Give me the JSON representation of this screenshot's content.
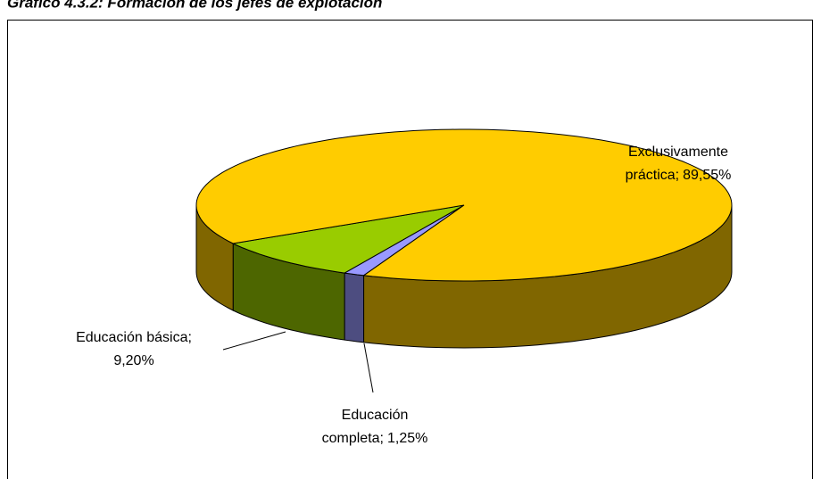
{
  "chart_data": {
    "type": "pie3d",
    "title": "Gráfico 4.3.2: Formación de los jefes de explotación",
    "categories": [
      "Exclusivamente práctica",
      "Educación básica",
      "Educación completa"
    ],
    "values": [
      89.55,
      9.2,
      1.25
    ],
    "value_labels": [
      "89,55%",
      "9,20%",
      "1,25%"
    ],
    "label_separator": ";",
    "colors": [
      "#ffcc00",
      "#99cc00",
      "#9999ff"
    ],
    "side_colors": [
      "#806600",
      "#4d6600",
      "#4d4d80"
    ]
  }
}
